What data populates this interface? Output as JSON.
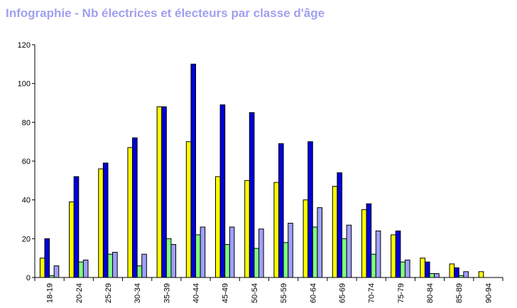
{
  "title": "Infographie - Nb électrices et électeurs par classe d'âge",
  "colors": {
    "title": "#a0a0f0",
    "series": [
      "#ffff00",
      "#0000dd",
      "#80ff80",
      "#a0a0ff"
    ]
  },
  "chart_data": {
    "type": "bar",
    "title": "Infographie - Nb électrices et électeurs par classe d'âge",
    "xlabel": "",
    "ylabel": "",
    "ylim": [
      0,
      120
    ],
    "yticks": [
      0,
      20,
      40,
      60,
      80,
      100,
      120
    ],
    "grid": false,
    "categories": [
      "18-19",
      "20-24",
      "25-29",
      "30-34",
      "35-39",
      "40-44",
      "45-49",
      "50-54",
      "55-59",
      "60-64",
      "65-69",
      "70-74",
      "75-79",
      "80-84",
      "85-89",
      "90-94"
    ],
    "series": [
      {
        "values": [
          10,
          39,
          56,
          67,
          88,
          70,
          52,
          50,
          49,
          40,
          47,
          35,
          22,
          10,
          7,
          3
        ]
      },
      {
        "values": [
          20,
          52,
          59,
          72,
          88,
          110,
          89,
          85,
          69,
          70,
          54,
          38,
          24,
          8,
          5,
          0
        ]
      },
      {
        "values": [
          1,
          8,
          12,
          6,
          20,
          22,
          17,
          15,
          18,
          26,
          20,
          12,
          8,
          2,
          1,
          0
        ]
      },
      {
        "values": [
          6,
          9,
          13,
          12,
          17,
          26,
          26,
          25,
          28,
          36,
          27,
          24,
          9,
          2,
          3,
          0
        ]
      }
    ]
  }
}
